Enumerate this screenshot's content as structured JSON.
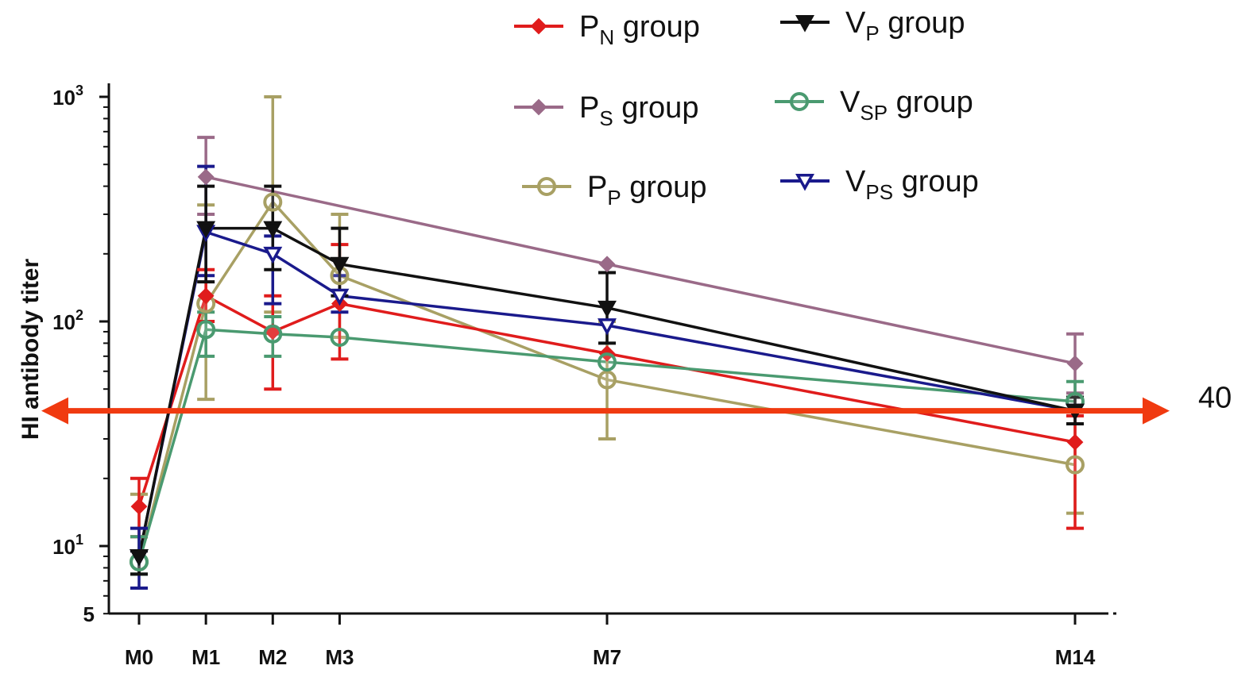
{
  "chart_data": {
    "type": "line",
    "ylabel": "HI antibody titer",
    "yscale": "log",
    "ylim": [
      5,
      1000
    ],
    "y_ticks": [
      {
        "value": 1000,
        "base": "10",
        "exp": "3"
      },
      {
        "value": 100,
        "base": "10",
        "exp": "2"
      },
      {
        "value": 10,
        "base": "10",
        "exp": "1"
      },
      {
        "value": 5,
        "base": "5",
        "exp": ""
      }
    ],
    "categories": [
      "M0",
      "M1",
      "M2",
      "M3",
      "M7",
      "M14"
    ],
    "x_positions": [
      0,
      1,
      2,
      3,
      7,
      14
    ],
    "legend_position": "top-right",
    "series": [
      {
        "name": "PN group",
        "label_main": "P",
        "label_sub": "N",
        "label_tail": " group",
        "color": "#e01c1c",
        "marker": "diamond",
        "filled": true,
        "values": [
          15,
          130,
          90,
          120,
          72,
          29
        ],
        "err_low": [
          11,
          100,
          50,
          68,
          null,
          12
        ],
        "err_high": [
          20,
          170,
          130,
          220,
          null,
          38
        ]
      },
      {
        "name": "PS group",
        "label_main": "P",
        "label_sub": "S",
        "label_tail": " group",
        "color": "#9a6a88",
        "marker": "diamond",
        "filled": true,
        "values": [
          null,
          440,
          null,
          null,
          180,
          65
        ],
        "err_low": [
          null,
          300,
          null,
          null,
          null,
          48
        ],
        "err_high": [
          null,
          660,
          null,
          null,
          null,
          88
        ]
      },
      {
        "name": "PP group",
        "label_main": "P",
        "label_sub": "P",
        "label_tail": " group",
        "color": "#a8a064",
        "marker": "circle",
        "filled": false,
        "values": [
          8.5,
          120,
          340,
          160,
          55,
          23
        ],
        "err_low": [
          7.5,
          45,
          110,
          85,
          30,
          14
        ],
        "err_high": [
          17,
          330,
          1000,
          300,
          100,
          38
        ]
      },
      {
        "name": "VP group",
        "label_main": "V",
        "label_sub": "P",
        "label_tail": " group",
        "color": "#111111",
        "marker": "triangle-down",
        "filled": true,
        "values": [
          9,
          260,
          260,
          180,
          115,
          40
        ],
        "err_low": [
          7.5,
          150,
          170,
          130,
          80,
          35
        ],
        "err_high": [
          9.5,
          400,
          400,
          260,
          165,
          46
        ]
      },
      {
        "name": "VSP group",
        "label_main": "V",
        "label_sub": "SP",
        "label_tail": " group",
        "color": "#4a9a70",
        "marker": "circle",
        "filled": false,
        "values": [
          8.5,
          92,
          88,
          85,
          66,
          44
        ],
        "err_low": [
          7.5,
          70,
          70,
          null,
          null,
          null
        ],
        "err_high": [
          11,
          110,
          105,
          null,
          null,
          54
        ]
      },
      {
        "name": "VPS group",
        "label_main": "V",
        "label_sub": "PS",
        "label_tail": " group",
        "color": "#1a1a8c",
        "marker": "triangle-down",
        "filled": false,
        "values": [
          9,
          250,
          200,
          130,
          96,
          40
        ],
        "err_low": [
          6.5,
          160,
          120,
          110,
          null,
          null
        ],
        "err_high": [
          12,
          490,
          240,
          160,
          null,
          null
        ]
      }
    ],
    "reference_line": {
      "value": 40,
      "label": "40",
      "color": "#f03a10"
    }
  }
}
